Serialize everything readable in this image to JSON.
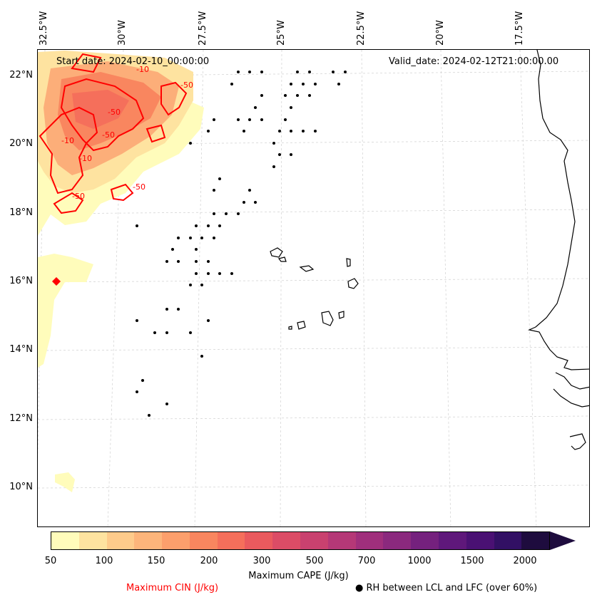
{
  "map": {
    "start_date": "Start date: 2024-02-10_00:00:00",
    "valid_date": "Valid_date: 2024-02-12T21:00:00.00",
    "lon_labels": [
      "32.5°W",
      "30°W",
      "27.5°W",
      "25°W",
      "22.5°W",
      "20°W",
      "17.5°W"
    ],
    "lat_labels": [
      "22°N",
      "20°N",
      "18°N",
      "16°N",
      "14°N",
      "12°N",
      "10°N"
    ],
    "cin_contour_labels": [
      "-10",
      "-50",
      "-50",
      "-10",
      "-50",
      "-10",
      "-50",
      "-50"
    ]
  },
  "colorbar": {
    "title": "Maximum CAPE (J/kg)",
    "tick_labels": [
      "50",
      "100",
      "150",
      "200",
      "300",
      "500",
      "700",
      "1000",
      "1500",
      "2000"
    ],
    "colors": [
      "#fffcbb",
      "#fee3a0",
      "#fecb8b",
      "#fdb57b",
      "#fc9f6c",
      "#f9865f",
      "#f56f5b",
      "#ea5a5e",
      "#dc4c66",
      "#c9416f",
      "#b53877",
      "#a02f7c",
      "#8b297e",
      "#75217e",
      "#5f187b",
      "#4a1173",
      "#321064",
      "#1e0c3e"
    ]
  },
  "legend": {
    "cin_label": "Maximum CIN (J/kg)",
    "rh_label": "RH between LCL and LFC (over 60%)",
    "rh_marker": "●"
  },
  "colors": {
    "cin_contour": "#ff0000",
    "land_outline": "#000000",
    "grid": "#cccccc"
  }
}
